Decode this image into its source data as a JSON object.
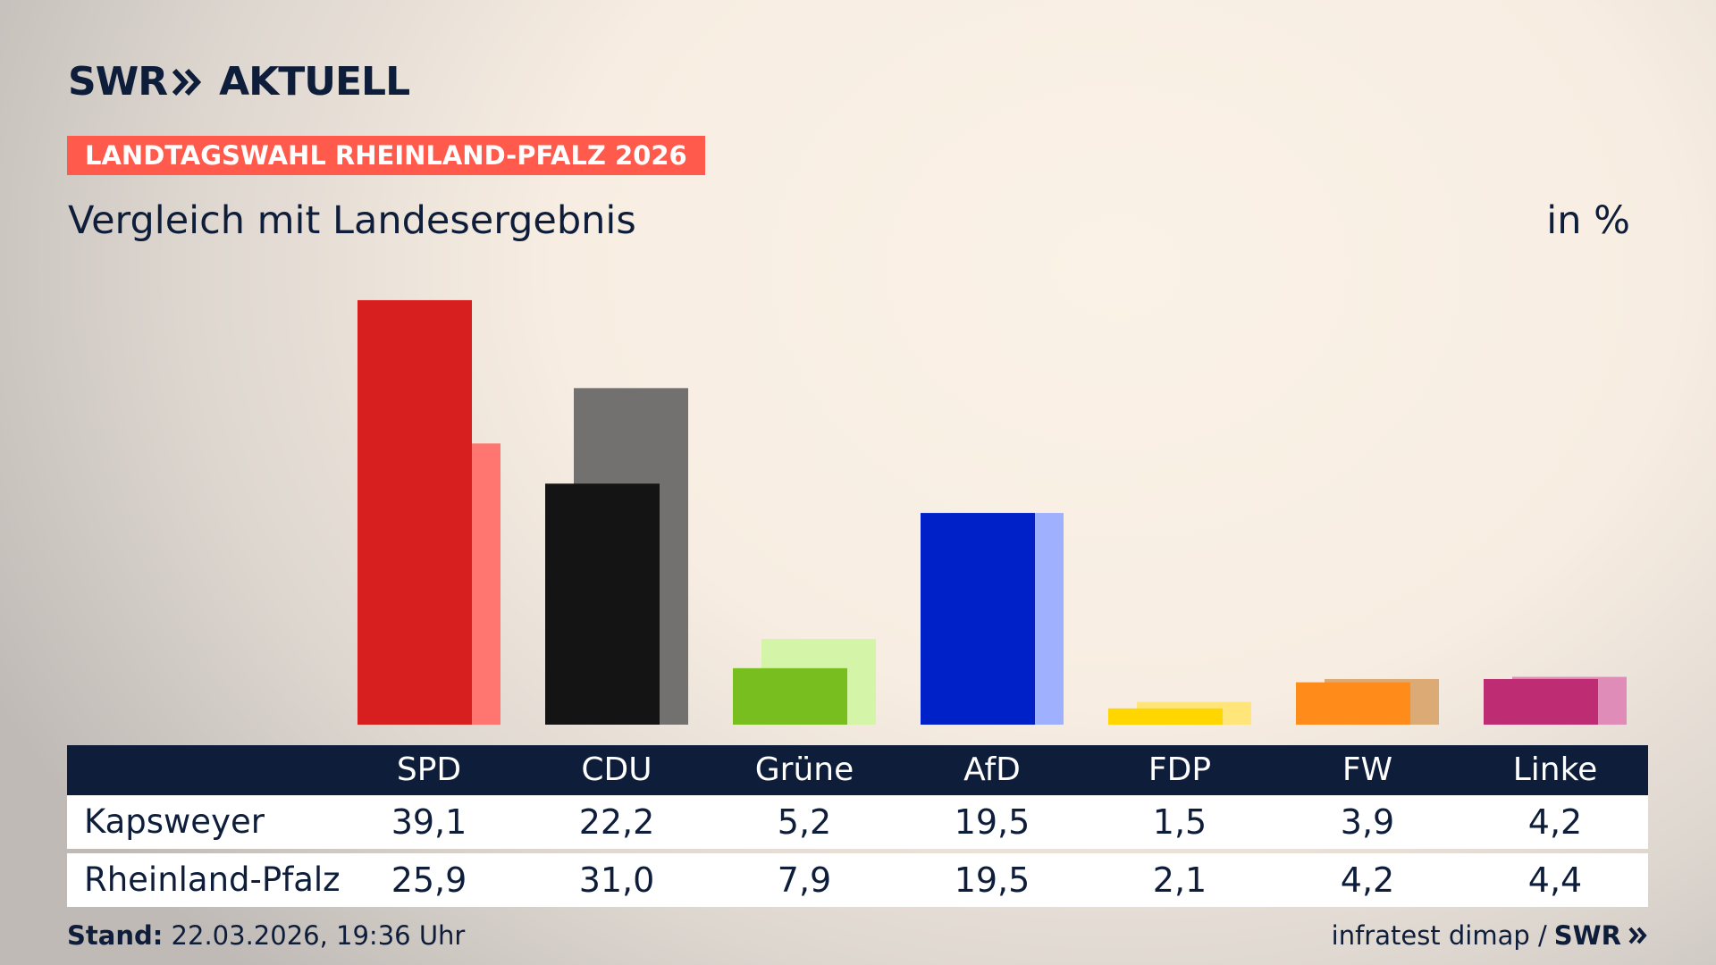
{
  "chart_data": {
    "type": "bar",
    "brand": "SWR",
    "brand_suffix": "AKTUELL",
    "kicker": "LANDTAGSWAHL RHEINLAND-PFALZ 2026",
    "title": "Vergleich mit Landesergebnis",
    "unit": "in %",
    "categories": [
      "SPD",
      "CDU",
      "Grüne",
      "AfD",
      "FDP",
      "FW",
      "Linke"
    ],
    "series": [
      {
        "name": "Kapsweyer",
        "values": [
          39.1,
          22.2,
          5.2,
          19.5,
          1.5,
          3.9,
          4.2
        ],
        "value_labels": [
          "39,1",
          "22,2",
          "5,2",
          "19,5",
          "1,5",
          "3,9",
          "4,2"
        ],
        "colors": [
          "#d71f1f",
          "#141414",
          "#78be1e",
          "#0021c8",
          "#ffd600",
          "#ff8c1a",
          "#be2d73"
        ]
      },
      {
        "name": "Rheinland-Pfalz",
        "values": [
          25.9,
          31.0,
          7.9,
          19.5,
          2.1,
          4.2,
          4.4
        ],
        "value_labels": [
          "25,9",
          "31,0",
          "7,9",
          "19,5",
          "2,1",
          "4,2",
          "4,4"
        ],
        "colors": [
          "#ff7570",
          "#737170",
          "#d4f5a8",
          "#9fb0ff",
          "#ffe57a",
          "#dcaa74",
          "#e08cb9"
        ]
      }
    ],
    "footer_label": "Stand:",
    "footer_date": "22.03.2026, 19:36 Uhr",
    "source": "infratest dimap /",
    "source_brand": "SWR"
  }
}
